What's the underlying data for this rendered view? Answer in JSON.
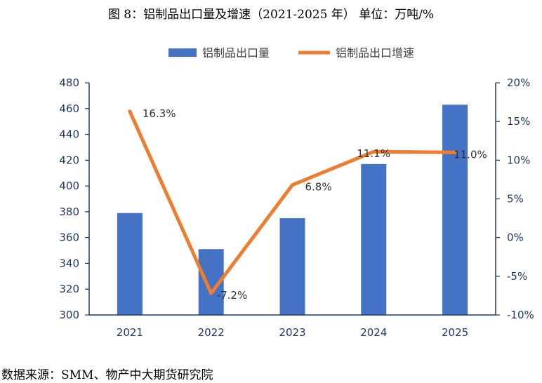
{
  "title": "图 8：铝制品出口量及增速（2021-2025 年） 单位：万吨/%",
  "source": "数据来源：SMM、物产中大期货研究院",
  "chart_data": {
    "type": "bar",
    "categories": [
      "2021",
      "2022",
      "2023",
      "2024",
      "2025"
    ],
    "series": [
      {
        "name": "铝制品出口量",
        "type": "bar",
        "axis": "left",
        "color": "#4472c4",
        "values": [
          379,
          351,
          375,
          417,
          463
        ]
      },
      {
        "name": "铝制品出口增速",
        "type": "line",
        "axis": "right",
        "color": "#ed7d31",
        "values": [
          16.3,
          -7.2,
          6.8,
          11.1,
          11.0
        ],
        "labels": [
          "16.3%",
          "-7.2%",
          "6.8%",
          "11.1%",
          "11.0%"
        ]
      }
    ],
    "y_left": {
      "min": 300,
      "max": 480,
      "step": 20,
      "ticks": [
        "300",
        "320",
        "340",
        "360",
        "380",
        "400",
        "420",
        "440",
        "460",
        "480"
      ]
    },
    "y_right": {
      "min": -10,
      "max": 20,
      "step": 5,
      "ticks": [
        "-10%",
        "-5%",
        "0%",
        "5%",
        "10%",
        "15%",
        "20%"
      ]
    },
    "legend_position": "top-center",
    "grid": false
  }
}
